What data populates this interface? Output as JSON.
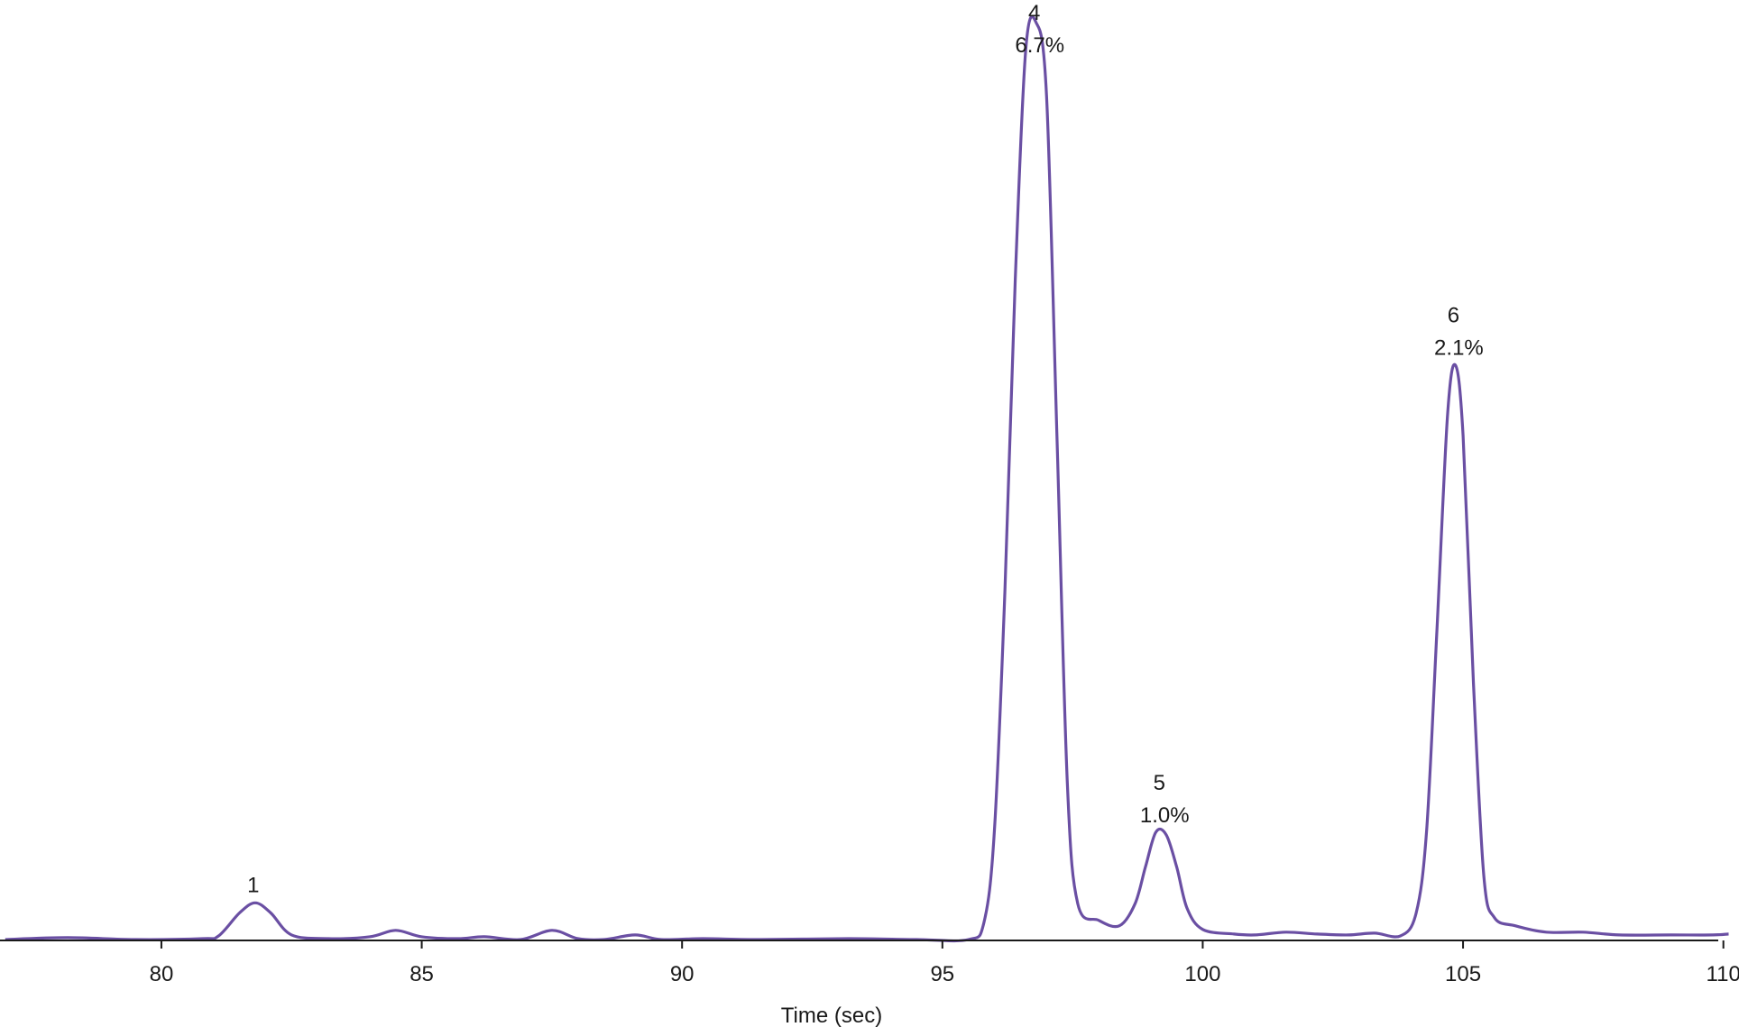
{
  "chart_data": {
    "type": "line",
    "title": "",
    "xlabel": "Time (sec)",
    "ylabel": "",
    "xlim": [
      76.9,
      110.3
    ],
    "ylim": [
      0,
      1
    ],
    "x_ticks": [
      80,
      85,
      90,
      95,
      100,
      105,
      110
    ],
    "x_tick_labels": [
      "80",
      "85",
      "90",
      "95",
      "100",
      "105",
      "110"
    ],
    "grid": false,
    "line_color": "#6a4fa3",
    "series": [
      {
        "values": [
          {
            "x": 77.0,
            "y": 0.001
          },
          {
            "x": 78.2,
            "y": 0.003
          },
          {
            "x": 79.5,
            "y": 0.001
          },
          {
            "x": 80.8,
            "y": 0.002
          },
          {
            "x": 81.1,
            "y": 0.005
          },
          {
            "x": 81.5,
            "y": 0.03
          },
          {
            "x": 81.8,
            "y": 0.041
          },
          {
            "x": 82.1,
            "y": 0.03
          },
          {
            "x": 82.5,
            "y": 0.006
          },
          {
            "x": 83.2,
            "y": 0.002
          },
          {
            "x": 84.0,
            "y": 0.004
          },
          {
            "x": 84.5,
            "y": 0.011
          },
          {
            "x": 85.0,
            "y": 0.004
          },
          {
            "x": 85.7,
            "y": 0.002
          },
          {
            "x": 86.2,
            "y": 0.004
          },
          {
            "x": 86.9,
            "y": 0.001
          },
          {
            "x": 87.5,
            "y": 0.011
          },
          {
            "x": 88.0,
            "y": 0.002
          },
          {
            "x": 88.5,
            "y": 0.001
          },
          {
            "x": 89.1,
            "y": 0.006
          },
          {
            "x": 89.6,
            "y": 0.001
          },
          {
            "x": 90.4,
            "y": 0.002
          },
          {
            "x": 91.5,
            "y": 0.001
          },
          {
            "x": 93.2,
            "y": 0.002
          },
          {
            "x": 94.5,
            "y": 0.001
          },
          {
            "x": 95.5,
            "y": 0.001
          },
          {
            "x": 95.8,
            "y": 0.02
          },
          {
            "x": 96.0,
            "y": 0.12
          },
          {
            "x": 96.2,
            "y": 0.38
          },
          {
            "x": 96.4,
            "y": 0.72
          },
          {
            "x": 96.6,
            "y": 0.97
          },
          {
            "x": 96.8,
            "y": 1.0
          },
          {
            "x": 97.0,
            "y": 0.92
          },
          {
            "x": 97.2,
            "y": 0.55
          },
          {
            "x": 97.4,
            "y": 0.17
          },
          {
            "x": 97.6,
            "y": 0.04
          },
          {
            "x": 98.0,
            "y": 0.022
          },
          {
            "x": 98.4,
            "y": 0.016
          },
          {
            "x": 98.7,
            "y": 0.04
          },
          {
            "x": 98.9,
            "y": 0.08
          },
          {
            "x": 99.1,
            "y": 0.118
          },
          {
            "x": 99.3,
            "y": 0.115
          },
          {
            "x": 99.5,
            "y": 0.08
          },
          {
            "x": 99.7,
            "y": 0.035
          },
          {
            "x": 100.0,
            "y": 0.012
          },
          {
            "x": 100.6,
            "y": 0.007
          },
          {
            "x": 101.0,
            "y": 0.006
          },
          {
            "x": 101.6,
            "y": 0.009
          },
          {
            "x": 102.2,
            "y": 0.007
          },
          {
            "x": 102.8,
            "y": 0.006
          },
          {
            "x": 103.3,
            "y": 0.008
          },
          {
            "x": 103.8,
            "y": 0.005
          },
          {
            "x": 104.1,
            "y": 0.03
          },
          {
            "x": 104.3,
            "y": 0.12
          },
          {
            "x": 104.5,
            "y": 0.34
          },
          {
            "x": 104.7,
            "y": 0.57
          },
          {
            "x": 104.85,
            "y": 0.627
          },
          {
            "x": 105.0,
            "y": 0.55
          },
          {
            "x": 105.2,
            "y": 0.28
          },
          {
            "x": 105.4,
            "y": 0.07
          },
          {
            "x": 105.6,
            "y": 0.025
          },
          {
            "x": 106.0,
            "y": 0.016
          },
          {
            "x": 106.6,
            "y": 0.009
          },
          {
            "x": 107.3,
            "y": 0.009
          },
          {
            "x": 108.0,
            "y": 0.006
          },
          {
            "x": 109.0,
            "y": 0.006
          },
          {
            "x": 109.8,
            "y": 0.006
          },
          {
            "x": 110.1,
            "y": 0.007
          }
        ]
      }
    ],
    "annotations": [
      {
        "peak": "1",
        "percent": "",
        "x": 81.8,
        "y": 0.041
      },
      {
        "peak": "4",
        "percent": "6.7%",
        "x": 96.8,
        "y": 1.0
      },
      {
        "peak": "5",
        "percent": "1.0%",
        "x": 99.2,
        "y": 0.118
      },
      {
        "peak": "6",
        "percent": "2.1%",
        "x": 104.85,
        "y": 0.627
      }
    ]
  }
}
